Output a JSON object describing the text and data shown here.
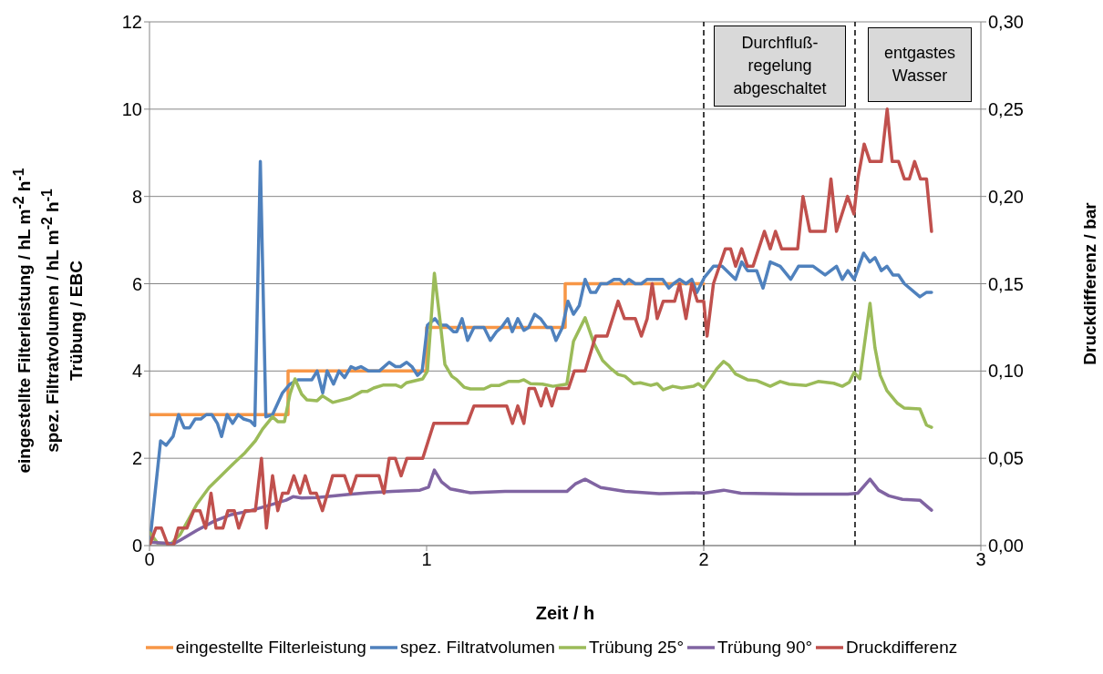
{
  "chart_data": {
    "type": "line",
    "xlabel": "Zeit / h",
    "ylabel": "eingestellte Filterleistung / hL m$^{-2}$ h$^{-1}$\nspez. Filtratvolumen / hL m$^{-2}$ h$^{-1}$\nTrübung / EBC",
    "y2label": "Druckdifferenz / bar",
    "xlim": [
      0,
      3
    ],
    "xticks": [
      0,
      1,
      2,
      3
    ],
    "ylim": [
      0,
      12
    ],
    "yticks": [
      0,
      2,
      4,
      6,
      8,
      10,
      12
    ],
    "y2lim": [
      0,
      0.3
    ],
    "y2ticks": [
      {
        "value": 0,
        "label": "0,00"
      },
      {
        "value": 0.05,
        "label": "0,05"
      },
      {
        "value": 0.1,
        "label": "0,10"
      },
      {
        "value": 0.15,
        "label": "0,15"
      },
      {
        "value": 0.2,
        "label": "0,20"
      },
      {
        "value": 0.25,
        "label": "0,25"
      },
      {
        "value": 0.3,
        "label": "0,30"
      }
    ],
    "grid": "y",
    "legend": "bottom",
    "line_style": "solid",
    "marker": "none",
    "ref_lines": [
      {
        "axis": "x",
        "value": 2.0,
        "color": "#000000",
        "line_style": "dashed"
      },
      {
        "axis": "x",
        "value": 2.546,
        "color": "#000000",
        "line_style": "dashed"
      }
    ],
    "annotations": [
      "Durchfluß-\nregelung\nabgeschaltet",
      "entgastes\nWasser"
    ],
    "series": [
      {
        "name": "eingestellte Filterleistung",
        "type": "step",
        "color": "#f79646",
        "x": [
          0,
          0.5,
          1.0,
          1.5,
          2.0
        ],
        "values": [
          3,
          4,
          5,
          6,
          6
        ]
      },
      {
        "name": "spez. Filtratvolumen",
        "color": "#4f81bd",
        "x": [
          0,
          0.04,
          0.06,
          0.085,
          0.105,
          0.125,
          0.145,
          0.165,
          0.185,
          0.205,
          0.225,
          0.245,
          0.26,
          0.28,
          0.3,
          0.32,
          0.34,
          0.365,
          0.38,
          0.4,
          0.42,
          0.444,
          0.48,
          0.507,
          0.536,
          0.586,
          0.605,
          0.625,
          0.641,
          0.664,
          0.684,
          0.704,
          0.727,
          0.743,
          0.763,
          0.79,
          0.829,
          0.865,
          0.888,
          0.905,
          0.928,
          0.947,
          0.967,
          0.984,
          1.003,
          1.03,
          1.048,
          1.072,
          1.097,
          1.109,
          1.128,
          1.148,
          1.171,
          1.207,
          1.23,
          1.252,
          1.27,
          1.293,
          1.309,
          1.329,
          1.351,
          1.368,
          1.39,
          1.411,
          1.434,
          1.45,
          1.467,
          1.49,
          1.51,
          1.53,
          1.551,
          1.572,
          1.592,
          1.61,
          1.628,
          1.651,
          1.676,
          1.697,
          1.714,
          1.73,
          1.753,
          1.775,
          1.796,
          1.852,
          1.874,
          1.891,
          1.913,
          1.936,
          1.957,
          1.975,
          2.003,
          2.035,
          2.066,
          2.115,
          2.137,
          2.158,
          2.191,
          2.214,
          2.24,
          2.276,
          2.314,
          2.342,
          2.395,
          2.438,
          2.479,
          2.5,
          2.52,
          2.543,
          2.577,
          2.599,
          2.618,
          2.641,
          2.661,
          2.683,
          2.703,
          2.724,
          2.78,
          2.803,
          2.822
        ],
        "values": [
          0,
          2.4,
          2.3,
          2.5,
          3.0,
          2.7,
          2.7,
          2.9,
          2.9,
          3.0,
          3.0,
          2.8,
          2.5,
          3.0,
          2.8,
          3.0,
          2.9,
          2.85,
          2.75,
          8.8,
          2.95,
          3.0,
          3.5,
          3.7,
          3.8,
          3.8,
          4.0,
          3.5,
          4.0,
          3.7,
          4.0,
          3.85,
          4.1,
          4.05,
          4.1,
          4.0,
          4.0,
          4.2,
          4.1,
          4.1,
          4.2,
          4.1,
          3.9,
          4.0,
          5.05,
          5.2,
          5.05,
          5.05,
          4.9,
          4.9,
          5.2,
          4.7,
          5.0,
          5.0,
          4.7,
          4.9,
          5.0,
          5.2,
          4.9,
          5.2,
          4.93,
          5.0,
          5.3,
          5.2,
          5.0,
          5.0,
          4.7,
          5.0,
          5.6,
          5.3,
          5.5,
          6.1,
          5.8,
          5.8,
          6.0,
          6.0,
          6.1,
          6.1,
          6.0,
          6.1,
          6.0,
          6.0,
          6.1,
          6.1,
          5.9,
          6.0,
          6.1,
          6.0,
          6.1,
          5.8,
          6.15,
          6.4,
          6.4,
          6.1,
          6.5,
          6.3,
          6.3,
          5.9,
          6.5,
          6.4,
          6.1,
          6.4,
          6.4,
          6.2,
          6.4,
          6.1,
          6.3,
          6.1,
          6.7,
          6.5,
          6.6,
          6.3,
          6.4,
          6.2,
          6.2,
          6.0,
          5.7,
          5.8,
          5.8
        ]
      },
      {
        "name": "Trübung 25°",
        "color": "#9bbb59",
        "x": [
          0,
          0.03,
          0.079,
          0.11,
          0.141,
          0.171,
          0.215,
          0.247,
          0.303,
          0.345,
          0.382,
          0.408,
          0.444,
          0.463,
          0.487,
          0.507,
          0.525,
          0.549,
          0.568,
          0.605,
          0.624,
          0.661,
          0.723,
          0.766,
          0.785,
          0.809,
          0.845,
          0.888,
          0.908,
          0.927,
          0.986,
          1.003,
          1.028,
          1.048,
          1.066,
          1.091,
          1.109,
          1.135,
          1.158,
          1.207,
          1.234,
          1.263,
          1.295,
          1.332,
          1.351,
          1.375,
          1.418,
          1.456,
          1.506,
          1.53,
          1.572,
          1.604,
          1.635,
          1.666,
          1.691,
          1.716,
          1.747,
          1.771,
          1.809,
          1.832,
          1.854,
          1.888,
          1.92,
          1.963,
          1.98,
          2.0,
          2.025,
          2.047,
          2.072,
          2.091,
          2.115,
          2.158,
          2.191,
          2.24,
          2.276,
          2.308,
          2.37,
          2.413,
          2.469,
          2.5,
          2.525,
          2.543,
          2.563,
          2.6,
          2.618,
          2.637,
          2.661,
          2.699,
          2.724,
          2.78,
          2.804,
          2.822
        ],
        "values": [
          0.3,
          0.05,
          0.05,
          0.25,
          0.6,
          0.95,
          1.33,
          1.53,
          1.88,
          2.13,
          2.4,
          2.67,
          2.95,
          2.84,
          2.84,
          3.47,
          3.82,
          3.47,
          3.34,
          3.32,
          3.43,
          3.28,
          3.38,
          3.53,
          3.53,
          3.61,
          3.68,
          3.68,
          3.63,
          3.73,
          3.82,
          4.0,
          6.24,
          5.18,
          4.15,
          3.88,
          3.8,
          3.63,
          3.59,
          3.59,
          3.67,
          3.67,
          3.76,
          3.76,
          3.8,
          3.71,
          3.7,
          3.65,
          3.7,
          4.68,
          5.22,
          4.63,
          4.24,
          4.05,
          3.92,
          3.88,
          3.71,
          3.73,
          3.67,
          3.71,
          3.57,
          3.65,
          3.61,
          3.65,
          3.71,
          3.61,
          3.84,
          4.05,
          4.22,
          4.13,
          3.93,
          3.8,
          3.78,
          3.65,
          3.76,
          3.7,
          3.67,
          3.76,
          3.72,
          3.65,
          3.74,
          3.97,
          3.82,
          5.55,
          4.53,
          3.9,
          3.55,
          3.26,
          3.15,
          3.13,
          2.76,
          2.71
        ]
      },
      {
        "name": "Trübung 90°",
        "color": "#8064a2",
        "x": [
          0,
          0.086,
          0.11,
          0.171,
          0.234,
          0.296,
          0.358,
          0.42,
          0.493,
          0.518,
          0.549,
          0.605,
          0.729,
          0.789,
          0.877,
          0.976,
          1.007,
          1.028,
          1.054,
          1.085,
          1.158,
          1.283,
          1.345,
          1.506,
          1.536,
          1.572,
          1.628,
          1.716,
          1.839,
          1.963,
          2.0,
          2.072,
          2.134,
          2.332,
          2.52,
          2.556,
          2.6,
          2.631,
          2.668,
          2.717,
          2.78,
          2.822
        ],
        "values": [
          0.08,
          0.04,
          0.12,
          0.35,
          0.56,
          0.71,
          0.79,
          0.9,
          1.04,
          1.12,
          1.09,
          1.1,
          1.18,
          1.21,
          1.24,
          1.27,
          1.34,
          1.73,
          1.46,
          1.3,
          1.21,
          1.24,
          1.24,
          1.24,
          1.41,
          1.52,
          1.33,
          1.24,
          1.19,
          1.21,
          1.2,
          1.27,
          1.2,
          1.18,
          1.18,
          1.2,
          1.52,
          1.27,
          1.14,
          1.06,
          1.04,
          0.81
        ]
      },
      {
        "name": "Druckdifferenz",
        "color": "#c0504d",
        "axis": "y2",
        "x": [
          0,
          0.023,
          0.043,
          0.067,
          0.086,
          0.104,
          0.135,
          0.16,
          0.182,
          0.203,
          0.222,
          0.24,
          0.265,
          0.283,
          0.306,
          0.322,
          0.345,
          0.382,
          0.404,
          0.422,
          0.444,
          0.463,
          0.48,
          0.5,
          0.521,
          0.543,
          0.562,
          0.581,
          0.602,
          0.624,
          0.661,
          0.704,
          0.726,
          0.747,
          0.828,
          0.846,
          0.865,
          0.887,
          0.908,
          0.929,
          0.986,
          1.026,
          1.147,
          1.171,
          1.289,
          1.31,
          1.329,
          1.351,
          1.369,
          1.39,
          1.413,
          1.431,
          1.452,
          1.47,
          1.512,
          1.533,
          1.572,
          1.61,
          1.651,
          1.691,
          1.714,
          1.753,
          1.775,
          1.796,
          1.814,
          1.832,
          1.854,
          1.895,
          1.913,
          1.936,
          1.957,
          1.977,
          2.0,
          2.012,
          2.035,
          2.078,
          2.097,
          2.115,
          2.137,
          2.158,
          2.178,
          2.219,
          2.24,
          2.259,
          2.281,
          2.339,
          2.358,
          2.383,
          2.438,
          2.459,
          2.479,
          2.519,
          2.542,
          2.556,
          2.579,
          2.6,
          2.641,
          2.662,
          2.68,
          2.703,
          2.724,
          2.742,
          2.761,
          2.782,
          2.804,
          2.822
        ],
        "values": [
          0,
          0.01,
          0.01,
          0,
          0,
          0.01,
          0.01,
          0.02,
          0.02,
          0.01,
          0.03,
          0.01,
          0.01,
          0.02,
          0.02,
          0.01,
          0.02,
          0.02,
          0.05,
          0.01,
          0.04,
          0.02,
          0.03,
          0.03,
          0.04,
          0.03,
          0.04,
          0.03,
          0.03,
          0.02,
          0.04,
          0.04,
          0.03,
          0.04,
          0.04,
          0.03,
          0.05,
          0.05,
          0.04,
          0.05,
          0.05,
          0.07,
          0.07,
          0.08,
          0.08,
          0.07,
          0.08,
          0.07,
          0.09,
          0.09,
          0.08,
          0.09,
          0.08,
          0.09,
          0.09,
          0.1,
          0.1,
          0.12,
          0.12,
          0.14,
          0.13,
          0.13,
          0.12,
          0.13,
          0.15,
          0.13,
          0.14,
          0.14,
          0.15,
          0.13,
          0.15,
          0.14,
          0.14,
          0.12,
          0.15,
          0.17,
          0.17,
          0.16,
          0.17,
          0.16,
          0.16,
          0.18,
          0.17,
          0.18,
          0.17,
          0.17,
          0.2,
          0.18,
          0.18,
          0.21,
          0.18,
          0.2,
          0.19,
          0.21,
          0.23,
          0.22,
          0.22,
          0.25,
          0.22,
          0.22,
          0.21,
          0.21,
          0.22,
          0.21,
          0.21,
          0.18
        ]
      }
    ]
  }
}
